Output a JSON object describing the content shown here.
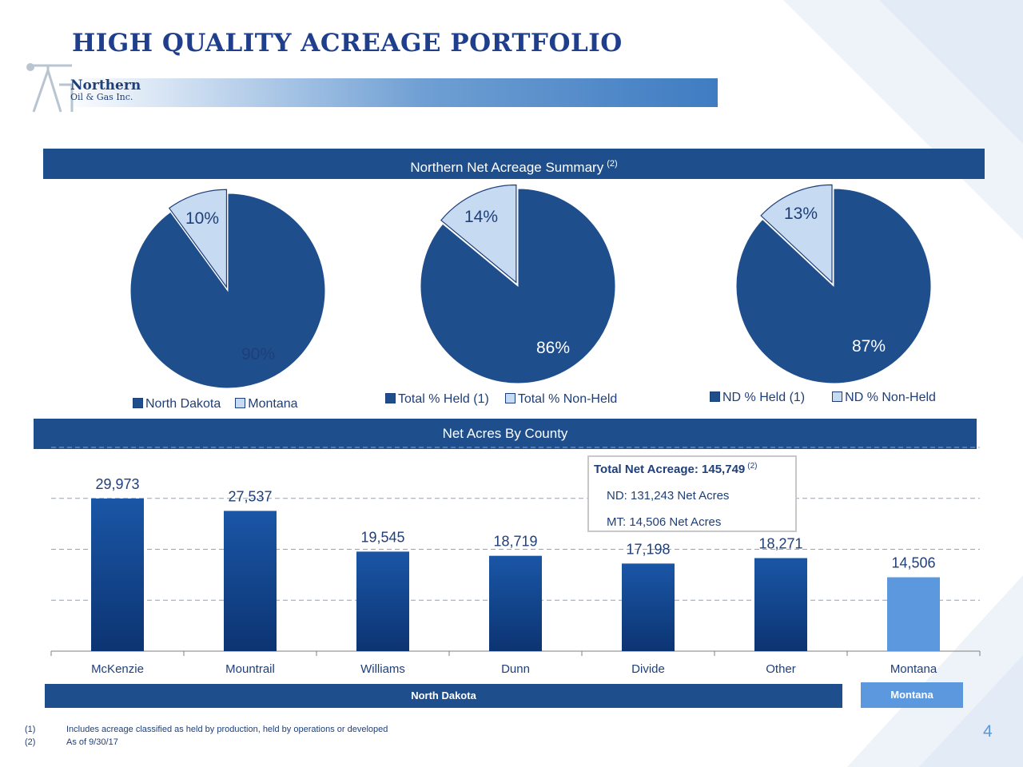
{
  "page": {
    "title": "HIGH QUALITY ACREAGE PORTFOLIO",
    "logo": {
      "line1": "Northern",
      "line2": "Oil & Gas Inc."
    },
    "page_number": "4"
  },
  "colors": {
    "dark_blue": "#1f4e8c",
    "light_blue": "#c6daf1",
    "montana_bar": "#5b98dd"
  },
  "summary": {
    "title": "Northern Net Acreage Summary",
    "note": "(2)"
  },
  "county": {
    "title": "Net Acres By County"
  },
  "textbox": {
    "total": "Total Net Acreage: 145,749",
    "total_note": "(2)",
    "nd": "ND: 131,243 Net Acres",
    "mt": "MT: 14,506 Net Acres"
  },
  "regions": {
    "nd": "North Dakota",
    "mt": "Montana"
  },
  "footnotes": [
    {
      "num": "(1)",
      "text": "Includes acreage classified as held by production, held by operations or developed"
    },
    {
      "num": "(2)",
      "text": "As of 9/30/17"
    }
  ],
  "chart_data": [
    {
      "type": "pie",
      "labels": [
        "North Dakota",
        "Montana"
      ],
      "values": [
        90,
        10
      ],
      "value_labels": [
        "90%",
        "10%"
      ],
      "legend": "bottom"
    },
    {
      "type": "pie",
      "labels": [
        "Total % Held (1)",
        "Total % Non-Held"
      ],
      "values": [
        86,
        14
      ],
      "value_labels": [
        "86%",
        "14%"
      ],
      "legend": "bottom"
    },
    {
      "type": "pie",
      "labels": [
        "ND % Held (1)",
        "ND % Non-Held"
      ],
      "values": [
        87,
        13
      ],
      "value_labels": [
        "87%",
        "13%"
      ],
      "legend": "bottom"
    },
    {
      "type": "bar",
      "categories": [
        "McKenzie",
        "Mountrail",
        "Williams",
        "Dunn",
        "Divide",
        "Other",
        "Montana"
      ],
      "values": [
        29973,
        27537,
        19545,
        18719,
        17198,
        18271,
        14506
      ],
      "value_labels": [
        "29,973",
        "27,537",
        "19,545",
        "18,719",
        "17,198",
        "18,271",
        "14,506"
      ],
      "ylim": [
        0,
        40000
      ],
      "grid": true,
      "xlabel": "",
      "ylabel": ""
    }
  ]
}
